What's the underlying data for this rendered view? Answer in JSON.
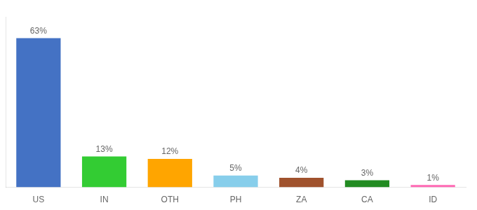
{
  "chart_data": {
    "type": "bar",
    "categories": [
      "US",
      "IN",
      "OTH",
      "PH",
      "ZA",
      "CA",
      "ID"
    ],
    "values": [
      63,
      13,
      12,
      5,
      4,
      3,
      1
    ],
    "value_labels": [
      "63%",
      "13%",
      "12%",
      "5%",
      "4%",
      "3%",
      "1%"
    ],
    "colors": [
      "#4472C4",
      "#33CC33",
      "#FFA500",
      "#87CEEB",
      "#A0522D",
      "#228B22",
      "#FF69B4"
    ],
    "ylim": [
      0,
      72
    ],
    "grid": false,
    "data_labels": true,
    "tick_labels": "x"
  }
}
